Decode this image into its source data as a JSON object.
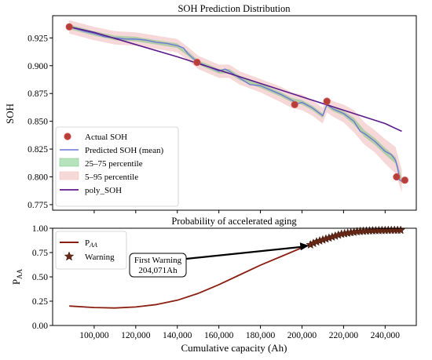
{
  "chart_data": [
    {
      "type": "line",
      "title": "SOH Prediction Distribution",
      "xlabel": "",
      "ylabel": "SOH",
      "xlim": [
        80000,
        255000
      ],
      "ylim": [
        0.77,
        0.945
      ],
      "yticks": [
        0.775,
        0.8,
        0.825,
        0.85,
        0.875,
        0.9,
        0.925
      ],
      "ytick_labels": [
        "0.775",
        "0.800",
        "0.825",
        "0.850",
        "0.875",
        "0.900",
        "0.925"
      ],
      "grid": false,
      "legend_position": "bottom-left",
      "series": [
        {
          "name": "Predicted SOH (mean)",
          "color": "#6a74d8",
          "x": [
            88000,
            95000,
            100000,
            105000,
            110000,
            115000,
            120000,
            125000,
            130000,
            135000,
            140000,
            143000,
            145000,
            148000,
            150000,
            155000,
            160000,
            163000,
            165000,
            170000,
            175000,
            180000,
            185000,
            190000,
            195000,
            198000,
            200000,
            205000,
            210000,
            212000,
            215000,
            220000,
            225000,
            228000,
            230000,
            235000,
            240000,
            243000,
            245000,
            246000,
            247000,
            248000
          ],
          "y": [
            0.935,
            0.931,
            0.929,
            0.926,
            0.925,
            0.924,
            0.924,
            0.923,
            0.921,
            0.92,
            0.918,
            0.916,
            0.911,
            0.906,
            0.903,
            0.899,
            0.895,
            0.897,
            0.895,
            0.889,
            0.883,
            0.882,
            0.878,
            0.874,
            0.869,
            0.866,
            0.867,
            0.862,
            0.855,
            0.865,
            0.861,
            0.857,
            0.85,
            0.841,
            0.839,
            0.832,
            0.823,
            0.82,
            0.815,
            0.808,
            0.797,
            0.796
          ]
        },
        {
          "name": "25–75 percentile",
          "color": "#5fbf6f",
          "x": [
            88000,
            100000,
            110000,
            120000,
            130000,
            140000,
            145000,
            150000,
            160000,
            165000,
            170000,
            180000,
            190000,
            195000,
            200000,
            205000,
            210000,
            212000,
            215000,
            220000,
            225000,
            230000,
            235000,
            240000,
            245000,
            248000
          ],
          "lower": [
            0.933,
            0.927,
            0.923,
            0.922,
            0.919,
            0.916,
            0.909,
            0.901,
            0.893,
            0.893,
            0.887,
            0.88,
            0.872,
            0.867,
            0.865,
            0.86,
            0.853,
            0.863,
            0.859,
            0.855,
            0.847,
            0.836,
            0.829,
            0.82,
            0.812,
            0.793
          ],
          "upper": [
            0.937,
            0.931,
            0.927,
            0.926,
            0.923,
            0.92,
            0.913,
            0.905,
            0.897,
            0.897,
            0.891,
            0.884,
            0.876,
            0.871,
            0.869,
            0.864,
            0.857,
            0.867,
            0.863,
            0.859,
            0.853,
            0.842,
            0.835,
            0.826,
            0.818,
            0.799
          ]
        },
        {
          "name": "5–95 percentile",
          "color": "#f0b8b8",
          "x": [
            88000,
            100000,
            110000,
            120000,
            130000,
            140000,
            145000,
            150000,
            160000,
            165000,
            170000,
            180000,
            190000,
            195000,
            200000,
            205000,
            210000,
            212000,
            215000,
            220000,
            225000,
            230000,
            235000,
            240000,
            245000,
            248000
          ],
          "lower": [
            0.929,
            0.923,
            0.919,
            0.918,
            0.915,
            0.912,
            0.905,
            0.897,
            0.889,
            0.889,
            0.883,
            0.876,
            0.867,
            0.862,
            0.86,
            0.855,
            0.848,
            0.858,
            0.854,
            0.849,
            0.84,
            0.829,
            0.822,
            0.812,
            0.803,
            0.786
          ],
          "upper": [
            0.941,
            0.935,
            0.931,
            0.93,
            0.927,
            0.924,
            0.917,
            0.909,
            0.901,
            0.901,
            0.895,
            0.888,
            0.881,
            0.876,
            0.874,
            0.869,
            0.862,
            0.872,
            0.868,
            0.865,
            0.86,
            0.849,
            0.842,
            0.834,
            0.827,
            0.806
          ]
        },
        {
          "name": "poly_SOH",
          "color": "#5b1a8c",
          "x": [
            88000,
            100000,
            120000,
            140000,
            160000,
            180000,
            200000,
            220000,
            240000,
            248000
          ],
          "y": [
            0.935,
            0.93,
            0.919,
            0.908,
            0.896,
            0.884,
            0.872,
            0.86,
            0.848,
            0.841
          ]
        },
        {
          "name": "Actual SOH",
          "color": "#b5403a",
          "type": "scatter",
          "x": [
            88000,
            149500,
            196500,
            212000,
            245500,
            249500
          ],
          "y": [
            0.935,
            0.903,
            0.865,
            0.868,
            0.8,
            0.797
          ]
        }
      ]
    },
    {
      "type": "line",
      "title": "Probability of accelerated aging",
      "xlabel": "Cumulative capacity (Ah)",
      "ylabel_main": "P",
      "ylabel_sub": "AA",
      "xlim": [
        80000,
        255000
      ],
      "ylim": [
        0,
        1.0
      ],
      "xticks": [
        100000,
        120000,
        140000,
        160000,
        180000,
        200000,
        220000,
        240000
      ],
      "xtick_labels": [
        "100,000",
        "120,000",
        "140,000",
        "160,000",
        "180,000",
        "200,000",
        "220,000",
        "240,000"
      ],
      "yticks": [
        0,
        0.25,
        0.5,
        0.75,
        1.0
      ],
      "ytick_labels": [
        "0.00",
        "0.25",
        "0.50",
        "0.75",
        "1.00"
      ],
      "grid": false,
      "legend_position": "top-left",
      "series": [
        {
          "name_main": "P",
          "name_sub": "AA",
          "color": "#8b1f12",
          "x": [
            88000,
            100000,
            110000,
            120000,
            130000,
            140000,
            150000,
            160000,
            170000,
            180000,
            190000,
            200000,
            204071,
            210000,
            215000,
            220000,
            230000,
            240000,
            248000
          ],
          "y": [
            0.2,
            0.185,
            0.18,
            0.19,
            0.215,
            0.26,
            0.33,
            0.42,
            0.52,
            0.62,
            0.71,
            0.8,
            0.83,
            0.88,
            0.92,
            0.95,
            0.97,
            0.98,
            0.98
          ]
        },
        {
          "name": "Warning",
          "color": "#6b2a18",
          "type": "scatter",
          "x": [
            204071,
            205500,
            207000,
            208500,
            210000,
            211500,
            213000,
            214500,
            216000,
            217500,
            219000,
            220500,
            222000,
            223500,
            225000,
            226500,
            228000,
            229500,
            231000,
            232500,
            234000,
            235500,
            237000,
            238500,
            240000,
            241500,
            243000,
            244500,
            246000,
            247500
          ],
          "y": [
            0.83,
            0.845,
            0.86,
            0.87,
            0.88,
            0.89,
            0.9,
            0.91,
            0.92,
            0.93,
            0.94,
            0.945,
            0.95,
            0.955,
            0.96,
            0.965,
            0.968,
            0.97,
            0.972,
            0.974,
            0.975,
            0.976,
            0.977,
            0.978,
            0.978,
            0.979,
            0.979,
            0.98,
            0.98,
            0.98
          ]
        }
      ],
      "annotation": {
        "line1": "First Warning",
        "line2": "204,071Ah",
        "target_x": 204071,
        "target_y": 0.83
      }
    }
  ]
}
